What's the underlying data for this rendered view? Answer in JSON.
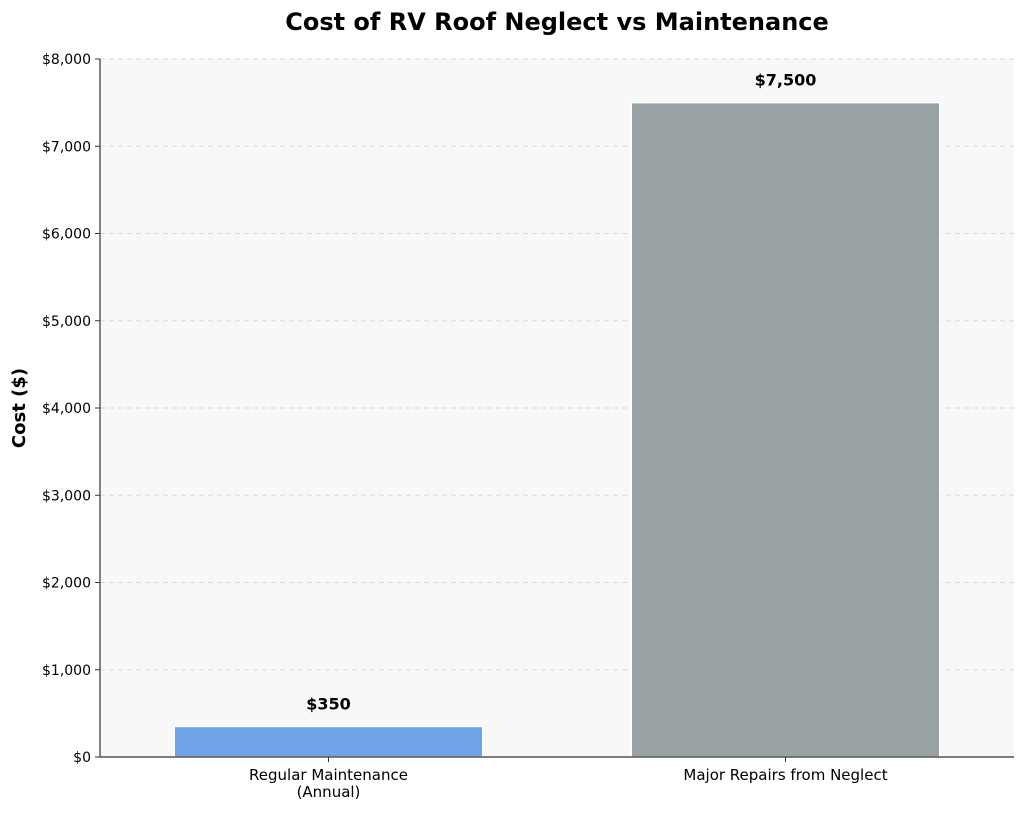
{
  "chart_data": {
    "type": "bar",
    "title": "Cost of RV Roof Neglect vs Maintenance",
    "xlabel": "",
    "ylabel": "Cost ($)",
    "categories": [
      "Regular Maintenance\n(Annual)",
      "Major Repairs from Neglect"
    ],
    "values": [
      350,
      7500
    ],
    "value_labels": [
      "$350",
      "$7,500"
    ],
    "ylim": [
      0,
      8000
    ],
    "yticks": [
      0,
      1000,
      2000,
      3000,
      4000,
      5000,
      6000,
      7000,
      8000
    ],
    "ytick_labels": [
      "$0",
      "$1,000",
      "$2,000",
      "$3,000",
      "$4,000",
      "$5,000",
      "$6,000",
      "$7,000",
      "$8,000"
    ],
    "bar_colors": [
      "#6ea3e6",
      "#98a2a4"
    ],
    "grid": true,
    "background": "#f8f8f8"
  }
}
